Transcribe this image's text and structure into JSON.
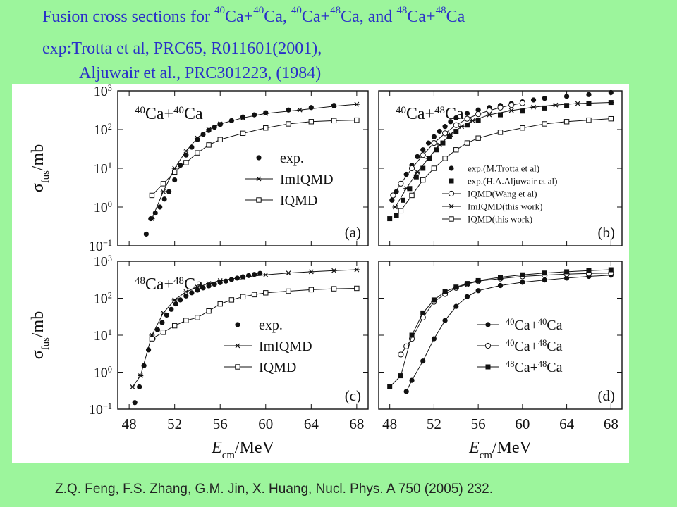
{
  "slide": {
    "title_prefix": "Fusion cross sections for ",
    "title_sup1": "40",
    "title_t1": "Ca+",
    "title_sup2": "40",
    "title_t2": "Ca, ",
    "title_sup3": "40",
    "title_t3": "Ca+",
    "title_sup4": "48",
    "title_t4": "Ca, and ",
    "title_sup5": "48",
    "title_t5": "Ca+",
    "title_sup6": "48",
    "title_t6": "Ca",
    "exp_line1": "exp:Trotta et al, PRC65, R011601(2001),",
    "exp_line2": "Aljuwair et al., PRC301223, (1984)",
    "citation": "Z.Q. Feng, F.S. Zhang, G.M. Jin, X. Huang, Nucl. Phys. A 750 (2005) 232."
  },
  "colors": {
    "background": "#9cf59c",
    "title": "#2a30c8",
    "plot_bg": "#ffffff",
    "ink": "#111111"
  },
  "axes": {
    "ylabel_main": "σ",
    "ylabel_sub": "fus",
    "ylabel_unit": "/mb",
    "xlabel_main": "E",
    "xlabel_sub": "cm",
    "xlabel_unit": "/MeV",
    "xticks": [
      "48",
      "52",
      "56",
      "60",
      "64",
      "68"
    ],
    "yticks": [
      {
        "base": "10",
        "exp": "−1"
      },
      {
        "base": "10",
        "exp": "0"
      },
      {
        "base": "10",
        "exp": "1"
      },
      {
        "base": "10",
        "exp": "2"
      },
      {
        "base": "10",
        "exp": "3"
      }
    ]
  },
  "chart_data": [
    {
      "type": "line",
      "panel": "(a)",
      "annotation_pre_a": "40",
      "annotation_mid": "Ca+",
      "annotation_pre_b": "40",
      "annotation_post": "Ca",
      "xlim": [
        47,
        69
      ],
      "ylim": [
        0.1,
        1000
      ],
      "yscale": "log",
      "legend": "center-right",
      "series": [
        {
          "name": "exp.",
          "marker": "filled-circle",
          "line": false,
          "x": [
            49.5,
            49.9,
            50.3,
            50.7,
            51.1,
            51.5,
            52,
            52.5,
            53,
            53.5,
            54,
            54.5,
            55,
            55.5,
            56,
            57,
            58,
            59,
            60,
            62,
            64,
            66
          ],
          "y": [
            0.2,
            0.5,
            0.7,
            1.0,
            1.6,
            2.5,
            5,
            12,
            22,
            35,
            55,
            75,
            95,
            115,
            135,
            170,
            210,
            240,
            270,
            320,
            370,
            420
          ]
        },
        {
          "name": "ImIQMD",
          "marker": "asterisk",
          "line": true,
          "x": [
            50,
            51,
            52,
            53,
            54,
            55,
            56,
            58,
            60,
            63,
            66,
            68
          ],
          "y": [
            0.5,
            2.5,
            10,
            28,
            60,
            100,
            140,
            200,
            260,
            320,
            400,
            450
          ]
        },
        {
          "name": "IQMD",
          "marker": "open-square",
          "line": true,
          "x": [
            50,
            51,
            52,
            53,
            54,
            55,
            56,
            58,
            60,
            62,
            64,
            66,
            68
          ],
          "y": [
            2,
            4,
            8,
            14,
            25,
            40,
            55,
            80,
            110,
            140,
            160,
            170,
            175
          ]
        }
      ]
    },
    {
      "type": "line",
      "panel": "(b)",
      "annotation_pre_a": "40",
      "annotation_mid": "Ca+",
      "annotation_pre_b": "48",
      "annotation_post": "Ca",
      "xlim": [
        47,
        69
      ],
      "ylim": [
        0.1,
        1000
      ],
      "yscale": "log",
      "legend": "bottom-right",
      "series": [
        {
          "name": "exp.(M.Trotta et al)",
          "marker": "filled-circle",
          "line": false,
          "x": [
            48.2,
            48.6,
            49,
            49.5,
            50,
            50.5,
            51,
            51.5,
            52,
            52.5,
            53,
            53.5,
            54,
            55,
            56,
            57,
            58,
            59,
            60,
            61,
            62,
            64,
            66,
            68
          ],
          "y": [
            1.5,
            2.5,
            4,
            7,
            12,
            20,
            30,
            45,
            65,
            90,
            120,
            160,
            200,
            260,
            320,
            370,
            420,
            470,
            520,
            580,
            640,
            720,
            800,
            900
          ]
        },
        {
          "name": "exp.(H.A.Aljuwair et al)",
          "marker": "filled-square",
          "line": false,
          "x": [
            48,
            48.6,
            49.2,
            49.8,
            50.4,
            51,
            51.6,
            52.2,
            52.8,
            53.4,
            54,
            55,
            56,
            58,
            60,
            62,
            64,
            66,
            68
          ],
          "y": [
            0.5,
            0.6,
            1.5,
            3,
            6,
            10,
            18,
            30,
            45,
            65,
            90,
            130,
            170,
            240,
            300,
            360,
            420,
            470,
            500
          ]
        },
        {
          "name": "IQMD(Wang et al)",
          "marker": "open-circle",
          "line": true,
          "x": [
            48.3,
            49,
            50,
            51,
            52,
            53,
            54,
            55,
            56,
            57,
            58,
            59,
            60
          ],
          "y": [
            2,
            4,
            10,
            22,
            45,
            80,
            130,
            190,
            250,
            310,
            370,
            430,
            480
          ]
        },
        {
          "name": "ImIQMD(this work)",
          "marker": "asterisk",
          "line": true,
          "x": [
            48.5,
            49.5,
            50.5,
            51.5,
            52.5,
            53.5,
            54.5,
            55.5,
            57,
            59,
            61,
            63,
            65,
            68
          ],
          "y": [
            1,
            3,
            8,
            18,
            40,
            75,
            120,
            170,
            240,
            310,
            380,
            430,
            470,
            500
          ]
        },
        {
          "name": "IQMD(this work)",
          "marker": "open-square",
          "line": true,
          "x": [
            49,
            50,
            51,
            52,
            53,
            54,
            55,
            56,
            58,
            60,
            62,
            64,
            66,
            68
          ],
          "y": [
            0.8,
            2,
            5,
            10,
            18,
            30,
            45,
            60,
            85,
            110,
            140,
            160,
            175,
            190
          ]
        }
      ]
    },
    {
      "type": "line",
      "panel": "(c)",
      "annotation_pre_a": "48",
      "annotation_mid": "Ca+",
      "annotation_pre_b": "48",
      "annotation_post": "Ca",
      "xlim": [
        47,
        69
      ],
      "ylim": [
        0.1,
        1000
      ],
      "yscale": "log",
      "legend": "bottom-right",
      "series": [
        {
          "name": "exp.",
          "marker": "filled-circle",
          "line": false,
          "x": [
            48.5,
            48.9,
            49.3,
            49.7,
            50.1,
            50.5,
            50.9,
            51.3,
            51.7,
            52.1,
            52.5,
            53,
            53.5,
            54,
            54.5,
            55,
            55.5,
            56,
            56.5,
            57,
            57.5,
            58,
            58.5,
            59,
            59.5
          ],
          "y": [
            0.15,
            0.4,
            1.5,
            4,
            8,
            14,
            22,
            35,
            50,
            70,
            90,
            115,
            140,
            165,
            190,
            215,
            240,
            265,
            290,
            320,
            350,
            380,
            410,
            440,
            470
          ]
        },
        {
          "name": "ImIQMD",
          "marker": "asterisk",
          "line": true,
          "x": [
            48.3,
            49,
            50,
            51,
            52,
            53,
            54,
            55,
            56,
            58,
            60,
            62,
            64,
            66,
            68
          ],
          "y": [
            0.4,
            0.8,
            10,
            40,
            90,
            150,
            200,
            250,
            300,
            370,
            430,
            480,
            520,
            560,
            590
          ]
        },
        {
          "name": "IQMD",
          "marker": "open-square",
          "line": true,
          "x": [
            50,
            51,
            52,
            53,
            54,
            55,
            56,
            57,
            58,
            59,
            60,
            62,
            64,
            66,
            68
          ],
          "y": [
            8,
            12,
            18,
            25,
            30,
            45,
            70,
            90,
            110,
            125,
            140,
            155,
            170,
            180,
            185
          ]
        }
      ]
    },
    {
      "type": "line",
      "panel": "(d)",
      "xlim": [
        47,
        69
      ],
      "ylim": [
        0.1,
        1000
      ],
      "yscale": "log",
      "legend": "center-right",
      "series": [
        {
          "name_pre_a": "40",
          "name_mid": "Ca+",
          "name_pre_b": "40",
          "name_post": "Ca",
          "marker": "filled-circle",
          "line": true,
          "x": [
            49.5,
            50,
            51,
            52,
            53,
            54,
            55,
            56,
            58,
            60,
            62,
            64,
            66,
            68
          ],
          "y": [
            0.3,
            0.6,
            2,
            8,
            25,
            60,
            110,
            160,
            220,
            270,
            310,
            350,
            390,
            420
          ]
        },
        {
          "name_pre_a": "40",
          "name_mid": "Ca+",
          "name_pre_b": "48",
          "name_post": "Ca",
          "marker": "open-circle",
          "line": true,
          "x": [
            49,
            49.5,
            50,
            51,
            52,
            53,
            54,
            55,
            56,
            58,
            60,
            62,
            64,
            66,
            68
          ],
          "y": [
            3,
            5,
            8,
            30,
            80,
            130,
            190,
            240,
            290,
            340,
            390,
            420,
            450,
            470,
            480
          ]
        },
        {
          "name_pre_a": "48",
          "name_mid": "Ca+",
          "name_pre_b": "48",
          "name_post": "Ca",
          "marker": "filled-square",
          "line": true,
          "x": [
            48,
            49,
            50,
            51,
            52,
            53,
            54,
            55,
            56,
            58,
            60,
            62,
            64,
            66,
            68
          ],
          "y": [
            0.4,
            0.8,
            10,
            40,
            90,
            150,
            200,
            250,
            300,
            370,
            430,
            480,
            520,
            560,
            590
          ]
        }
      ]
    }
  ]
}
